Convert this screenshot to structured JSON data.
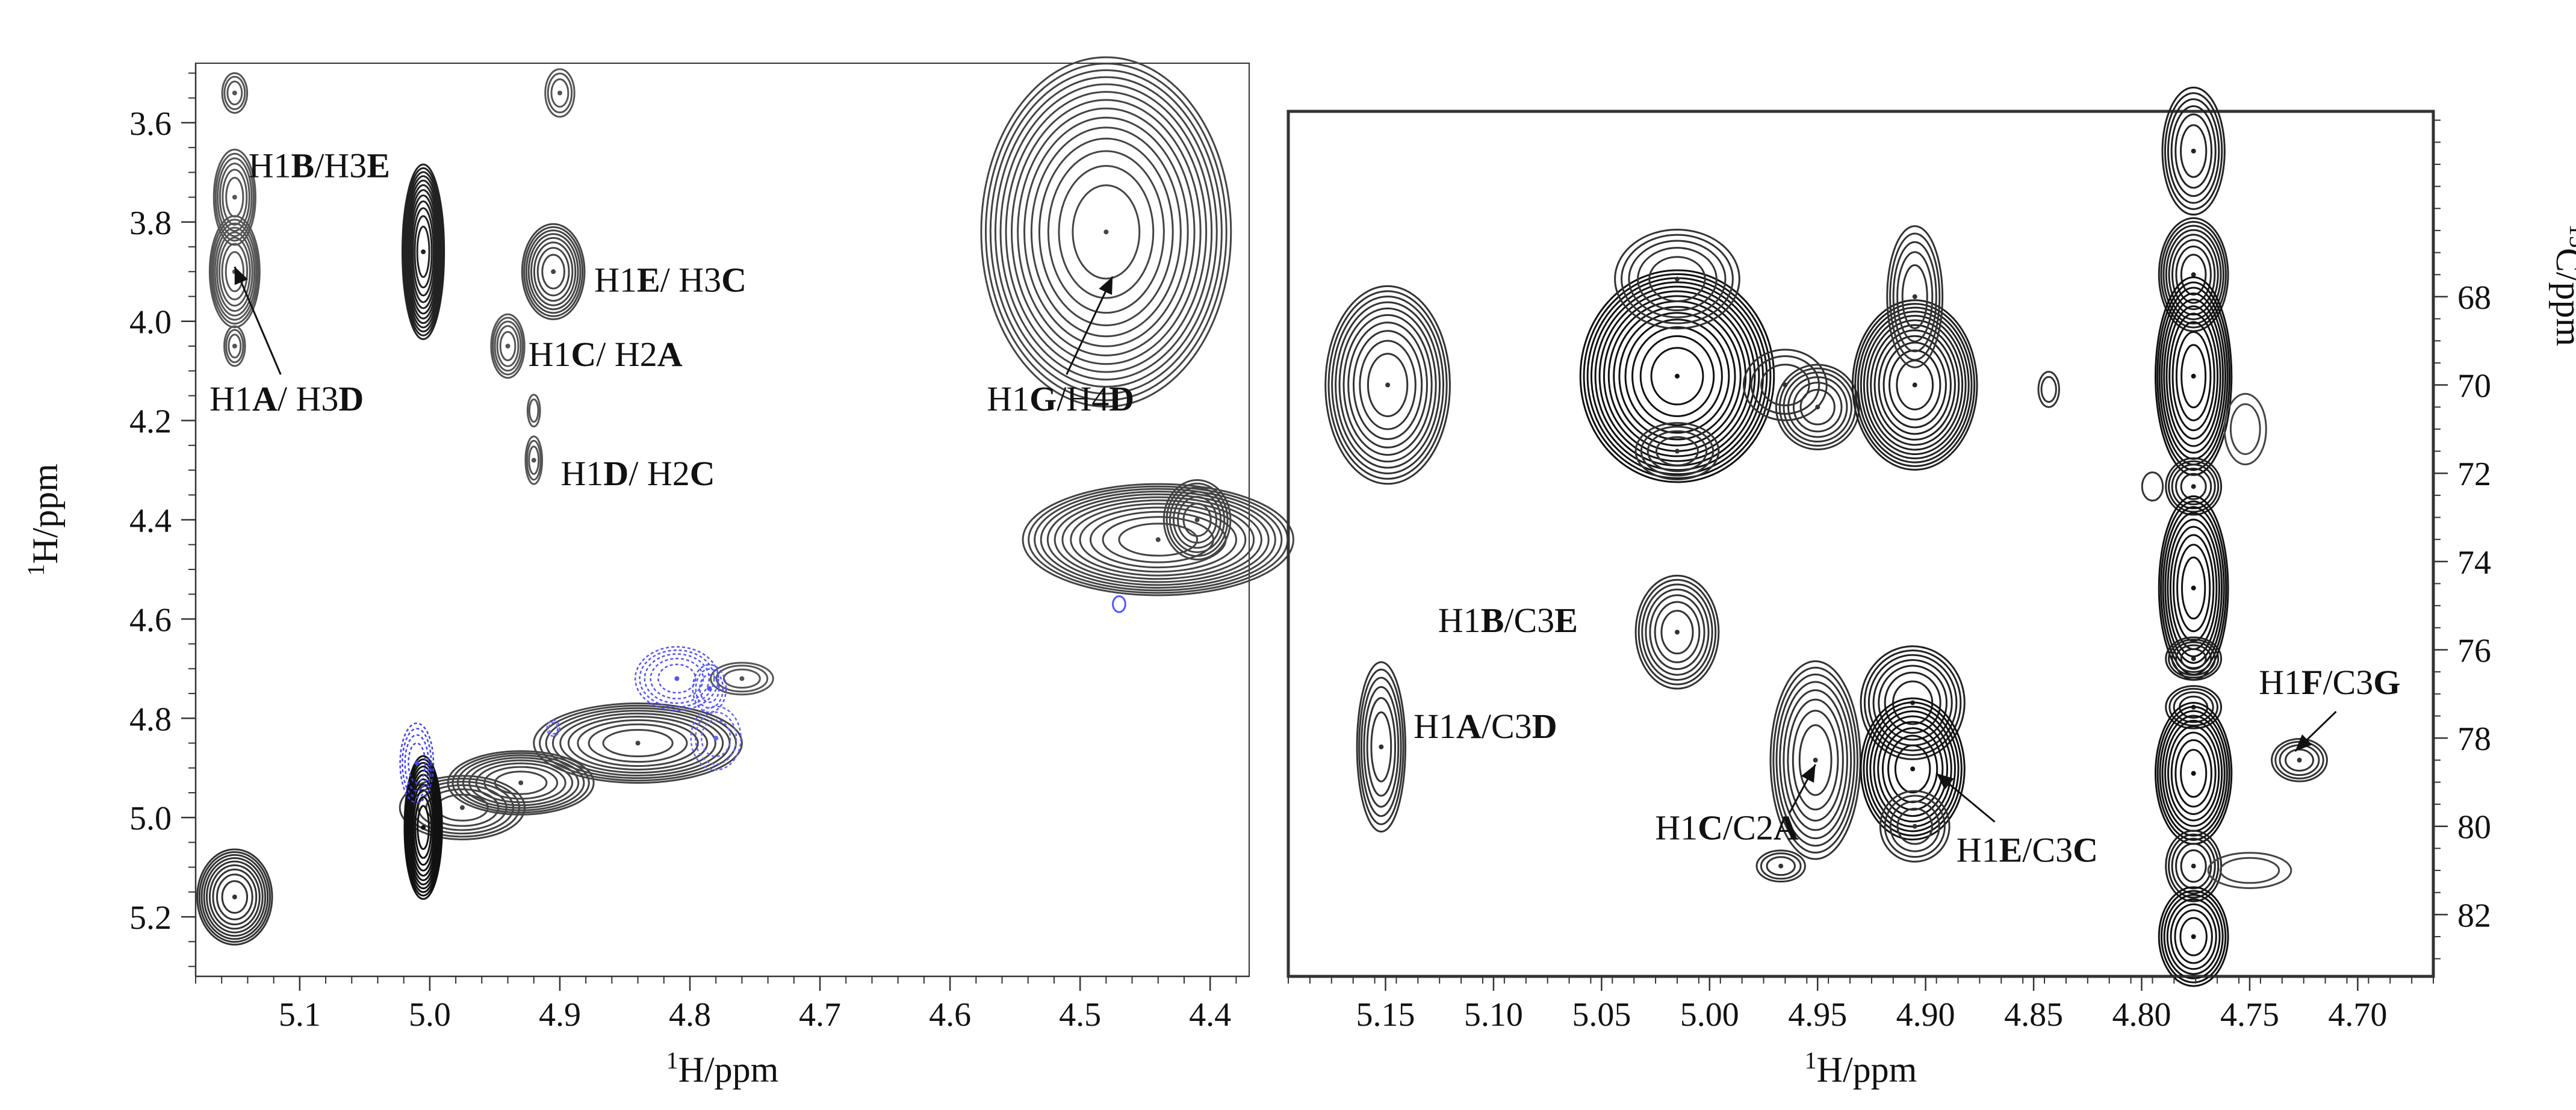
{
  "chart_data": [
    {
      "type": "contour",
      "panel": "left",
      "xlabel": "1H/ppm",
      "ylabel": "1H/ppm",
      "xlim": [
        5.18,
        4.37
      ],
      "ylim": [
        3.48,
        5.32
      ],
      "xticks": [
        5.1,
        5.0,
        4.9,
        4.8,
        4.7,
        4.6,
        4.5,
        4.4
      ],
      "yticks": [
        3.6,
        3.8,
        4.0,
        4.2,
        4.4,
        4.6,
        4.8,
        5.0,
        5.2
      ],
      "peaks": [
        {
          "x": 5.15,
          "y": 3.54,
          "sx": 0.006,
          "sy": 0.025,
          "levels": 3,
          "color": "#555555"
        },
        {
          "x": 5.15,
          "y": 3.75,
          "sx": 0.01,
          "sy": 0.06,
          "levels": 6,
          "color": "#555555"
        },
        {
          "x": 5.15,
          "y": 3.9,
          "sx": 0.012,
          "sy": 0.07,
          "levels": 8,
          "color": "#555555"
        },
        {
          "x": 5.15,
          "y": 4.05,
          "sx": 0.005,
          "sy": 0.025,
          "levels": 3,
          "color": "#555555"
        },
        {
          "x": 5.005,
          "y": 3.86,
          "sx": 0.01,
          "sy": 0.11,
          "levels": 12,
          "color": "#222222"
        },
        {
          "x": 4.9,
          "y": 3.54,
          "sx": 0.007,
          "sy": 0.03,
          "levels": 3,
          "color": "#555555"
        },
        {
          "x": 4.905,
          "y": 3.9,
          "sx": 0.015,
          "sy": 0.06,
          "levels": 8,
          "color": "#444444"
        },
        {
          "x": 4.94,
          "y": 4.05,
          "sx": 0.008,
          "sy": 0.04,
          "levels": 5,
          "color": "#555555"
        },
        {
          "x": 4.92,
          "y": 4.18,
          "sx": 0.003,
          "sy": 0.02,
          "levels": 2,
          "color": "#555555"
        },
        {
          "x": 4.92,
          "y": 4.28,
          "sx": 0.004,
          "sy": 0.03,
          "levels": 3,
          "color": "#555555"
        },
        {
          "x": 4.48,
          "y": 3.82,
          "sx": 0.06,
          "sy": 0.22,
          "levels": 14,
          "color": "#444444"
        },
        {
          "x": 4.44,
          "y": 4.44,
          "sx": 0.065,
          "sy": 0.07,
          "levels": 12,
          "color": "#444444"
        },
        {
          "x": 4.41,
          "y": 4.4,
          "sx": 0.016,
          "sy": 0.05,
          "levels": 6,
          "color": "#444444"
        },
        {
          "x": 4.84,
          "y": 4.85,
          "sx": 0.05,
          "sy": 0.05,
          "levels": 9,
          "color": "#444444"
        },
        {
          "x": 4.93,
          "y": 4.93,
          "sx": 0.035,
          "sy": 0.04,
          "levels": 8,
          "color": "#444444"
        },
        {
          "x": 4.975,
          "y": 4.98,
          "sx": 0.03,
          "sy": 0.04,
          "levels": 6,
          "color": "#444444"
        },
        {
          "x": 5.005,
          "y": 5.02,
          "sx": 0.009,
          "sy": 0.09,
          "levels": 11,
          "color": "#111111"
        },
        {
          "x": 4.76,
          "y": 4.72,
          "sx": 0.015,
          "sy": 0.02,
          "levels": 3,
          "color": "#555555"
        },
        {
          "x": 5.15,
          "y": 5.16,
          "sx": 0.018,
          "sy": 0.06,
          "levels": 9,
          "color": "#333333"
        },
        {
          "x": 4.47,
          "y": 4.57,
          "sx": 0.003,
          "sy": 0.01,
          "levels": 1,
          "color": "#5555ff"
        },
        {
          "x": 5.01,
          "y": 4.89,
          "sx": 0.008,
          "sy": 0.05,
          "levels": 4,
          "color": "#4444ee",
          "dashed": true
        },
        {
          "x": 4.81,
          "y": 4.72,
          "sx": 0.02,
          "sy": 0.04,
          "levels": 5,
          "color": "#5555ee",
          "dashed": true
        },
        {
          "x": 4.785,
          "y": 4.74,
          "sx": 0.008,
          "sy": 0.03,
          "levels": 3,
          "color": "#5555ee",
          "dashed": true
        },
        {
          "x": 4.78,
          "y": 4.84,
          "sx": 0.012,
          "sy": 0.04,
          "levels": 3,
          "color": "#6666ee",
          "dashed": true
        },
        {
          "x": 4.905,
          "y": 4.82,
          "sx": 0.003,
          "sy": 0.01,
          "levels": 2,
          "color": "#6666ee",
          "dashed": true
        }
      ],
      "annotations": [
        {
          "parts": [
            [
              "H1",
              false
            ],
            [
              "B",
              true
            ],
            [
              "/H3",
              false
            ],
            [
              "E",
              true
            ]
          ],
          "x": 5.085,
          "y": 3.71
        },
        {
          "parts": [
            [
              "H1",
              false
            ],
            [
              "E",
              true
            ],
            [
              "/ H3",
              false
            ],
            [
              "C",
              true
            ]
          ],
          "x": 4.815,
          "y": 3.94
        },
        {
          "parts": [
            [
              "H1",
              false
            ],
            [
              "C",
              true
            ],
            [
              "/ H2",
              false
            ],
            [
              "A",
              true
            ]
          ],
          "x": 4.865,
          "y": 4.09
        },
        {
          "parts": [
            [
              "H1",
              false
            ],
            [
              "D",
              true
            ],
            [
              "/ H2",
              false
            ],
            [
              "C",
              true
            ]
          ],
          "x": 4.84,
          "y": 4.33
        },
        {
          "parts": [
            [
              "H1",
              false
            ],
            [
              "A",
              true
            ],
            [
              "/ H3",
              false
            ],
            [
              "D",
              true
            ]
          ],
          "x": 5.11,
          "y": 4.18,
          "arrow": [
            5.15,
            3.89
          ]
        },
        {
          "parts": [
            [
              "H1",
              false
            ],
            [
              "G",
              true
            ],
            [
              "/H4",
              false
            ],
            [
              "D",
              true
            ]
          ],
          "x": 4.515,
          "y": 4.18,
          "arrow": [
            4.475,
            3.91
          ]
        }
      ]
    },
    {
      "type": "contour",
      "panel": "right",
      "xlabel": "1H/ppm",
      "ylabel": "13C/ppm",
      "xlim": [
        5.195,
        4.665
      ],
      "ylim": [
        63.8,
        83.4
      ],
      "xticks": [
        5.15,
        5.1,
        5.05,
        5.0,
        4.95,
        4.9,
        4.85,
        4.8,
        4.75,
        4.7
      ],
      "yticks": [
        68,
        70,
        72,
        74,
        76,
        78,
        80,
        82
      ],
      "peaks": [
        {
          "x": 5.149,
          "y": 70.0,
          "sx": 0.018,
          "sy": 1.4,
          "levels": 10,
          "color": "#333333"
        },
        {
          "x": 5.015,
          "y": 69.8,
          "sx": 0.028,
          "sy": 1.5,
          "levels": 14,
          "color": "#111111"
        },
        {
          "x": 5.015,
          "y": 67.6,
          "sx": 0.018,
          "sy": 0.7,
          "levels": 5,
          "color": "#333333"
        },
        {
          "x": 5.015,
          "y": 71.5,
          "sx": 0.012,
          "sy": 0.4,
          "levels": 4,
          "color": "#333333"
        },
        {
          "x": 4.95,
          "y": 70.5,
          "sx": 0.012,
          "sy": 0.6,
          "levels": 6,
          "color": "#333333"
        },
        {
          "x": 4.965,
          "y": 70.0,
          "sx": 0.012,
          "sy": 0.5,
          "levels": 3,
          "color": "#333333"
        },
        {
          "x": 4.905,
          "y": 70.0,
          "sx": 0.018,
          "sy": 1.2,
          "levels": 12,
          "color": "#222222"
        },
        {
          "x": 4.905,
          "y": 68.0,
          "sx": 0.008,
          "sy": 1.0,
          "levels": 5,
          "color": "#333333"
        },
        {
          "x": 4.843,
          "y": 70.1,
          "sx": 0.003,
          "sy": 0.25,
          "levels": 2,
          "color": "#333333"
        },
        {
          "x": 5.015,
          "y": 75.6,
          "sx": 0.012,
          "sy": 0.8,
          "levels": 7,
          "color": "#333333"
        },
        {
          "x": 5.152,
          "y": 78.2,
          "sx": 0.007,
          "sy": 1.2,
          "levels": 6,
          "color": "#333333"
        },
        {
          "x": 4.951,
          "y": 78.5,
          "sx": 0.013,
          "sy": 1.4,
          "levels": 8,
          "color": "#333333"
        },
        {
          "x": 4.906,
          "y": 77.2,
          "sx": 0.015,
          "sy": 0.8,
          "levels": 7,
          "color": "#222222"
        },
        {
          "x": 4.906,
          "y": 78.7,
          "sx": 0.015,
          "sy": 1.0,
          "levels": 9,
          "color": "#111111"
        },
        {
          "x": 4.905,
          "y": 80.0,
          "sx": 0.01,
          "sy": 0.5,
          "levels": 4,
          "color": "#333333"
        },
        {
          "x": 4.967,
          "y": 80.9,
          "sx": 0.007,
          "sy": 0.22,
          "levels": 3,
          "color": "#333333"
        },
        {
          "x": 4.727,
          "y": 78.5,
          "sx": 0.008,
          "sy": 0.3,
          "levels": 4,
          "color": "#333333"
        },
        {
          "x": 4.776,
          "y": 64.7,
          "sx": 0.009,
          "sy": 0.9,
          "levels": 6,
          "color": "#222222"
        },
        {
          "x": 4.776,
          "y": 67.5,
          "sx": 0.01,
          "sy": 0.8,
          "levels": 8,
          "color": "#222222"
        },
        {
          "x": 4.776,
          "y": 69.8,
          "sx": 0.011,
          "sy": 1.4,
          "levels": 10,
          "color": "#111111"
        },
        {
          "x": 4.776,
          "y": 72.3,
          "sx": 0.008,
          "sy": 0.4,
          "levels": 5,
          "color": "#222222"
        },
        {
          "x": 4.776,
          "y": 74.6,
          "sx": 0.01,
          "sy": 1.3,
          "levels": 9,
          "color": "#111111"
        },
        {
          "x": 4.776,
          "y": 76.2,
          "sx": 0.008,
          "sy": 0.3,
          "levels": 5,
          "color": "#222222"
        },
        {
          "x": 4.776,
          "y": 77.3,
          "sx": 0.008,
          "sy": 0.3,
          "levels": 4,
          "color": "#222222"
        },
        {
          "x": 4.776,
          "y": 78.8,
          "sx": 0.011,
          "sy": 1.0,
          "levels": 9,
          "color": "#111111"
        },
        {
          "x": 4.776,
          "y": 80.9,
          "sx": 0.008,
          "sy": 0.5,
          "levels": 5,
          "color": "#222222"
        },
        {
          "x": 4.776,
          "y": 82.5,
          "sx": 0.01,
          "sy": 0.7,
          "levels": 7,
          "color": "#111111"
        },
        {
          "x": 4.795,
          "y": 72.3,
          "sx": 0.003,
          "sy": 0.2,
          "levels": 1,
          "color": "#333333"
        },
        {
          "x": 4.752,
          "y": 71.0,
          "sx": 0.006,
          "sy": 0.5,
          "levels": 2,
          "color": "#444444"
        },
        {
          "x": 4.75,
          "y": 81.0,
          "sx": 0.012,
          "sy": 0.25,
          "levels": 2,
          "color": "#444444"
        }
      ],
      "annotations": [
        {
          "parts": [
            [
              "H1",
              false
            ],
            [
              "B",
              true
            ],
            [
              "/C3",
              false
            ],
            [
              "E",
              true
            ]
          ],
          "x": 5.061,
          "y": 75.6,
          "anchor": "end"
        },
        {
          "parts": [
            [
              "H1",
              false
            ],
            [
              "A",
              true
            ],
            [
              "/C3",
              false
            ],
            [
              "D",
              true
            ]
          ],
          "x": 5.137,
          "y": 78.0,
          "anchor": "start"
        },
        {
          "parts": [
            [
              "H1",
              false
            ],
            [
              "C",
              true
            ],
            [
              "/C2",
              false
            ],
            [
              "A",
              true
            ]
          ],
          "x": 4.992,
          "y": 80.3,
          "anchor": "middle",
          "arrow": [
            4.951,
            78.6
          ],
          "arrowFrom": [
            4.963,
            79.7
          ]
        },
        {
          "parts": [
            [
              "H1",
              false
            ],
            [
              "E",
              true
            ],
            [
              "/C3",
              false
            ],
            [
              "C",
              true
            ]
          ],
          "x": 4.853,
          "y": 80.8,
          "anchor": "middle",
          "arrow": [
            4.895,
            78.8
          ],
          "arrowFrom": [
            4.868,
            79.9
          ]
        },
        {
          "parts": [
            [
              "H1",
              false
            ],
            [
              "F",
              true
            ],
            [
              "/C3",
              false
            ],
            [
              "G",
              true
            ]
          ],
          "x": 4.713,
          "y": 77.0,
          "anchor": "middle",
          "arrow": [
            4.729,
            78.3
          ],
          "arrowFrom": [
            4.71,
            77.4
          ]
        }
      ]
    }
  ]
}
